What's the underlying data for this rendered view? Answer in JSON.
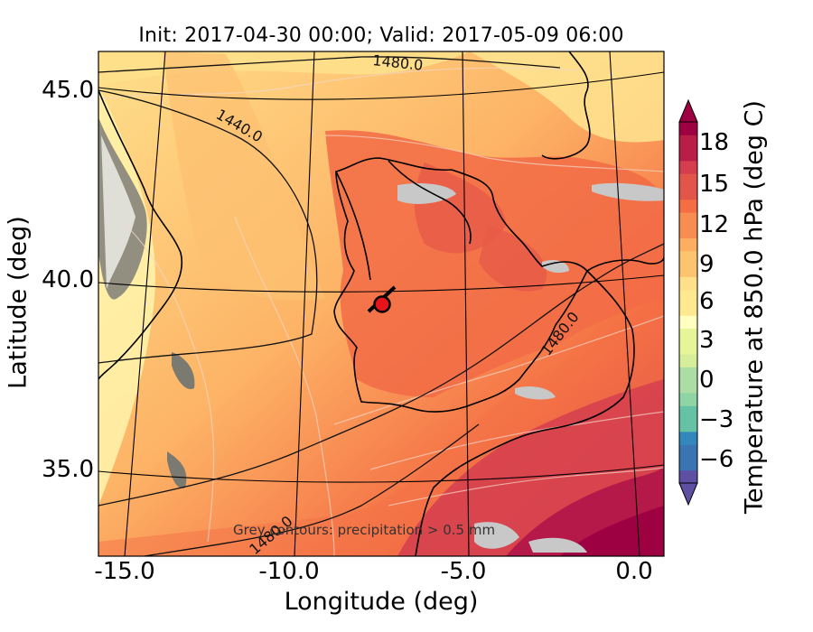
{
  "title": "Init: 2017-04-30 00:00; Valid: 2017-05-09 06:00",
  "map_type": "temperature-map",
  "projection": "conic",
  "xaxis": {
    "label": "Longitude (deg)",
    "ticks": [
      "-15.0",
      "-10.0",
      "-5.0",
      "0.0"
    ]
  },
  "yaxis": {
    "label": "Latitude (deg)",
    "ticks": [
      "45.0",
      "40.0",
      "35.0"
    ]
  },
  "colorbar": {
    "label": "Temperature at 850.0 hPa (deg C)",
    "ticks": [
      "18",
      "15",
      "12",
      "9",
      "6",
      "3",
      "0",
      "−3",
      "−6"
    ],
    "range": [
      -8,
      20
    ],
    "colormap": "Spectral_r"
  },
  "contour_labels": [
    "1480.0",
    "1440.0",
    "1480.0",
    "1480.0"
  ],
  "annotation": "Grey contours: precipitation > 0.5 mm",
  "marker": {
    "lon": -7.7,
    "lat": 39.4,
    "color": "#e8141c"
  },
  "colors": {
    "warm_max": "#9e0142",
    "warm_high": "#d53e4f",
    "warm_mid": "#f46d43",
    "mild": "#fdae61",
    "cool": "#fee08b",
    "neutral": "#ffffbf",
    "cold": "#5e4fa2",
    "precip": "#c8c8c8"
  }
}
